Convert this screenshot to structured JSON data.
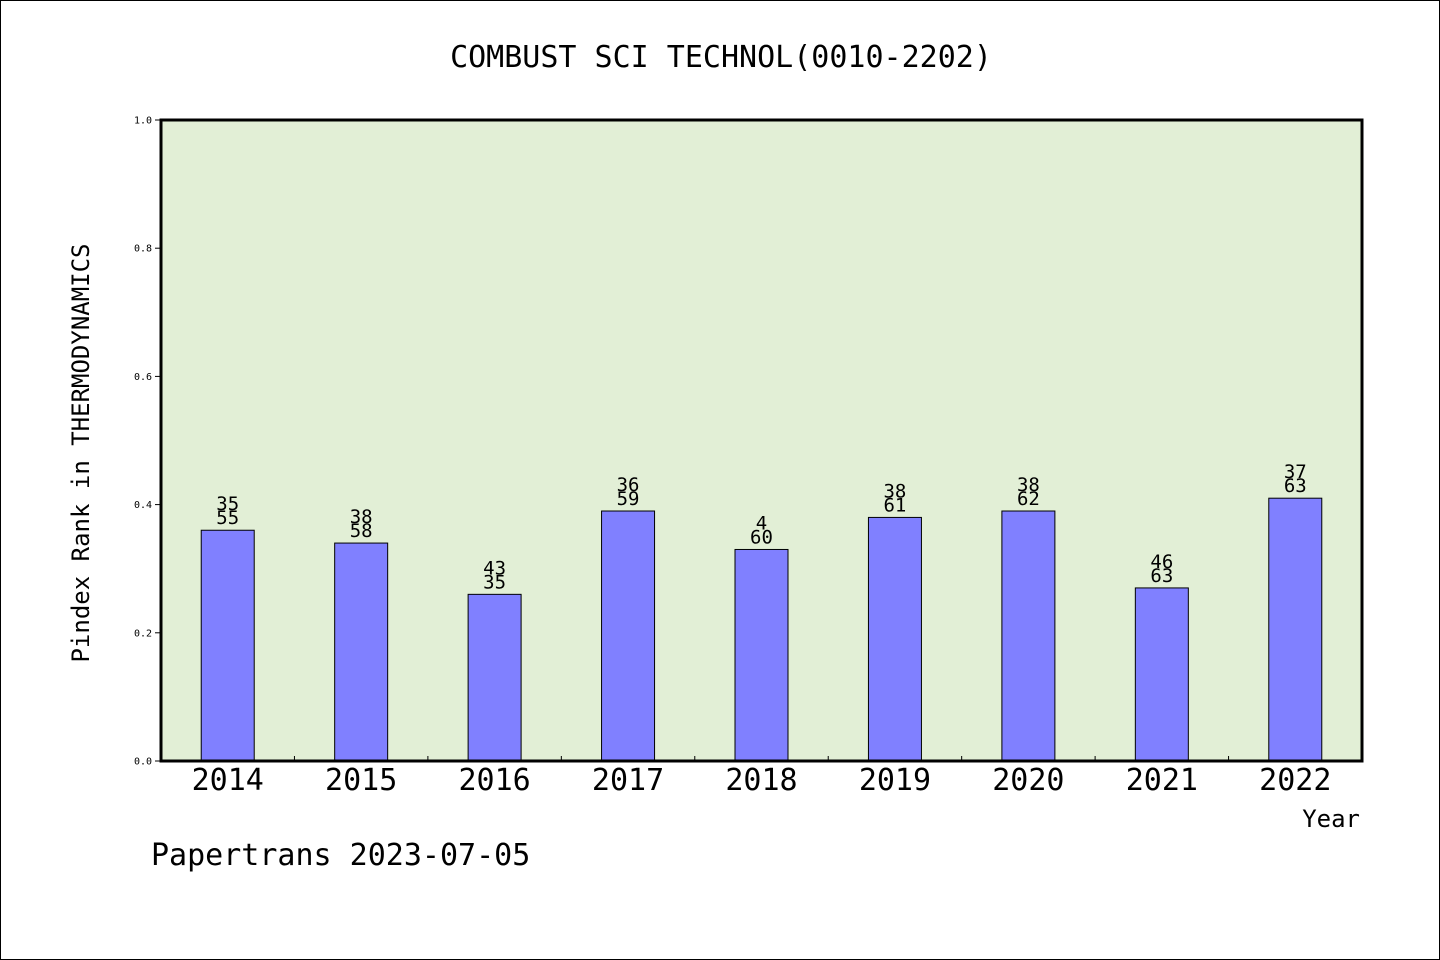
{
  "chart_data": {
    "type": "bar",
    "title": "COMBUST SCI TECHNOL(0010-2202)",
    "xlabel": "Year",
    "ylabel": "Pindex Rank in THERMODYNAMICS",
    "ylim": [
      0,
      1.0
    ],
    "yticks": [
      "0.0",
      "0.2",
      "0.4",
      "0.6",
      "0.8",
      "1.0"
    ],
    "categories": [
      "2014",
      "2015",
      "2016",
      "2017",
      "2018",
      "2019",
      "2020",
      "2021",
      "2022"
    ],
    "values": [
      0.36,
      0.34,
      0.26,
      0.39,
      0.33,
      0.38,
      0.39,
      0.27,
      0.41
    ],
    "labels_top": [
      "35",
      "38",
      "43",
      "36",
      "4",
      "38",
      "38",
      "46",
      "37"
    ],
    "labels_bottom": [
      "55",
      "58",
      "35",
      "59",
      "60",
      "61",
      "62",
      "63",
      "63"
    ],
    "grid": false,
    "colors": {
      "plot_background": "#e2efd6",
      "bar_fill": "#8080ff",
      "bar_stroke": "#000000"
    }
  },
  "footer": "Papertrans 2023-07-05"
}
